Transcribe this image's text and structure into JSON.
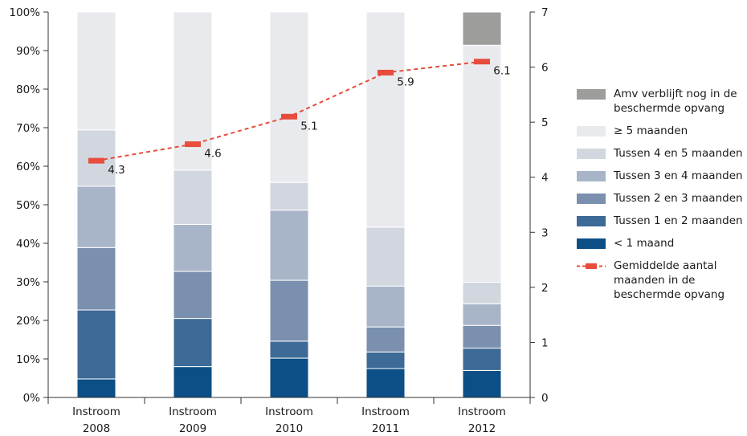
{
  "chart_data": {
    "type": "bar",
    "stacked": true,
    "categories": [
      "Instroom\n2008",
      "Instroom\n2009",
      "Instroom\n2010",
      "Instroom\n2011",
      "Instroom\n2012"
    ],
    "ylim": [
      0,
      100
    ],
    "y2lim": [
      0,
      7
    ],
    "yticks": [
      "0%",
      "10%",
      "20%",
      "30%",
      "40%",
      "50%",
      "60%",
      "70%",
      "80%",
      "90%",
      "100%"
    ],
    "y2ticks": [
      "0",
      "1",
      "2",
      "3",
      "4",
      "5",
      "6",
      "7"
    ],
    "grid": false,
    "legend_position": "right",
    "series": [
      {
        "name": "< 1 maand",
        "color": "#0b4f86",
        "values": [
          4.8,
          8,
          10.2,
          7.5,
          7
        ]
      },
      {
        "name": "Tussen 1 en 2 maanden",
        "color": "#3d6a96",
        "values": [
          17.9,
          12.5,
          4.4,
          4.3,
          5.8
        ]
      },
      {
        "name": "Tussen 2 en 3 maanden",
        "color": "#7b90ae",
        "values": [
          16.2,
          12.2,
          15.8,
          6.5,
          5.9
        ]
      },
      {
        "name": "Tussen 3 en 4 maanden",
        "color": "#a8b5c8",
        "values": [
          15.9,
          12.2,
          18.2,
          10.6,
          5.6
        ]
      },
      {
        "name": "Tussen 4 en 5 maanden",
        "color": "#d2d7df",
        "values": [
          14.6,
          14.1,
          7.2,
          15.3,
          5.6
        ]
      },
      {
        "name": "≥ 5 maanden",
        "color": "#e9eaee",
        "values": [
          30.6,
          41,
          44.2,
          55.8,
          61.5
        ]
      },
      {
        "name": "Amv verblijft nog in de beschermde opvang",
        "color": "#9d9d9c",
        "values": [
          0,
          0,
          0,
          0,
          8.6
        ]
      }
    ],
    "line": {
      "name": "Gemiddelde aantal maanden in de beschermde opvang",
      "color": "#e74c3c",
      "axis": "right",
      "values": [
        4.3,
        4.6,
        5.1,
        5.9,
        6.1
      ],
      "labels": [
        "4.3",
        "4.6",
        "5.1",
        "5.9",
        "6.1"
      ]
    }
  },
  "legend": [
    {
      "label": "Amv verblijft nog in de beschermde opvang",
      "color": "#9d9d9c",
      "kind": "box"
    },
    {
      "label": "≥ 5 maanden",
      "color": "#e9eaee",
      "kind": "box"
    },
    {
      "label": "Tussen 4 en 5 maanden",
      "color": "#d2d7df",
      "kind": "box"
    },
    {
      "label": "Tussen 3 en 4 maanden",
      "color": "#a8b5c8",
      "kind": "box"
    },
    {
      "label": "Tussen 2 en 3 maanden",
      "color": "#7b90ae",
      "kind": "box"
    },
    {
      "label": "Tussen 1 en 2 maanden",
      "color": "#3d6a96",
      "kind": "box"
    },
    {
      "label": "< 1 maand",
      "color": "#0b4f86",
      "kind": "box"
    },
    {
      "label": "Gemiddelde aantal maanden in de beschermde opvang",
      "color": "#e74c3c",
      "kind": "line"
    }
  ]
}
